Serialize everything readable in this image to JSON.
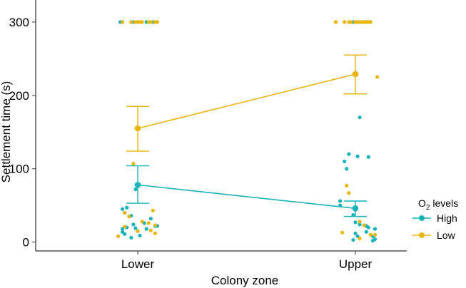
{
  "chart_data": {
    "type": "scatter",
    "title": "",
    "xlabel": "Colony zone",
    "ylabel": "Settlement time (s)",
    "categories": [
      "Lower",
      "Upper"
    ],
    "ylim": [
      -12,
      330
    ],
    "yticks": [
      0,
      100,
      200,
      300
    ],
    "grid": false,
    "legend": {
      "title_main": "O",
      "title_sub": "2",
      "title_rest": " levels",
      "position": "right",
      "entries": [
        {
          "label": "High",
          "color": "#17b3b8"
        },
        {
          "label": "Low",
          "color": "#e8b610"
        }
      ]
    },
    "series": [
      {
        "name": "High",
        "color": "#17b3b8",
        "means": [
          78,
          46
        ],
        "ci_low": [
          53,
          35
        ],
        "ci_high": [
          104,
          56
        ],
        "points": [
          {
            "x": 0,
            "jitter": -0.08,
            "y": 300
          },
          {
            "x": 0,
            "jitter": -0.02,
            "y": 300
          },
          {
            "x": 0,
            "jitter": 0.04,
            "y": 300
          },
          {
            "x": 0,
            "jitter": 0.07,
            "y": 300
          },
          {
            "x": 0,
            "jitter": -0.07,
            "y": 45
          },
          {
            "x": 0,
            "jitter": -0.05,
            "y": 47
          },
          {
            "x": 0,
            "jitter": -0.06,
            "y": 40
          },
          {
            "x": 0,
            "jitter": -0.03,
            "y": 36
          },
          {
            "x": 0,
            "jitter": -0.01,
            "y": 72
          },
          {
            "x": 0,
            "jitter": 0.06,
            "y": 32
          },
          {
            "x": 0,
            "jitter": -0.07,
            "y": 18
          },
          {
            "x": 0,
            "jitter": -0.07,
            "y": 14
          },
          {
            "x": 0,
            "jitter": -0.06,
            "y": 11
          },
          {
            "x": 0,
            "jitter": -0.05,
            "y": 20
          },
          {
            "x": 0,
            "jitter": -0.03,
            "y": 6
          },
          {
            "x": 0,
            "jitter": -0.02,
            "y": 24
          },
          {
            "x": 0,
            "jitter": -0.01,
            "y": 19
          },
          {
            "x": 0,
            "jitter": 0.0,
            "y": 15
          },
          {
            "x": 0,
            "jitter": 0.01,
            "y": 9
          },
          {
            "x": 0,
            "jitter": 0.03,
            "y": 26
          },
          {
            "x": 0,
            "jitter": 0.04,
            "y": 18
          },
          {
            "x": 0,
            "jitter": 0.08,
            "y": 22
          },
          {
            "x": 0,
            "jitter": 0.09,
            "y": 22
          },
          {
            "x": 1,
            "jitter": -0.01,
            "y": 300
          },
          {
            "x": 1,
            "jitter": 0.03,
            "y": 300
          },
          {
            "x": 1,
            "jitter": 0.05,
            "y": 300
          },
          {
            "x": 1,
            "jitter": 0.06,
            "y": 300
          },
          {
            "x": 1,
            "jitter": 0.02,
            "y": 170
          },
          {
            "x": 1,
            "jitter": -0.03,
            "y": 120
          },
          {
            "x": 1,
            "jitter": 0.01,
            "y": 117
          },
          {
            "x": 1,
            "jitter": 0.06,
            "y": 116
          },
          {
            "x": 1,
            "jitter": -0.05,
            "y": 110
          },
          {
            "x": 1,
            "jitter": -0.04,
            "y": 100
          },
          {
            "x": 1,
            "jitter": -0.07,
            "y": 56
          },
          {
            "x": 1,
            "jitter": -0.07,
            "y": 50
          },
          {
            "x": 1,
            "jitter": -0.01,
            "y": 37
          },
          {
            "x": 1,
            "jitter": 0.0,
            "y": 27
          },
          {
            "x": 1,
            "jitter": 0.02,
            "y": 24
          },
          {
            "x": 1,
            "jitter": 0.05,
            "y": 22
          },
          {
            "x": 1,
            "jitter": 0.06,
            "y": 20
          },
          {
            "x": 1,
            "jitter": 0.09,
            "y": 18
          },
          {
            "x": 1,
            "jitter": 0.0,
            "y": 12
          },
          {
            "x": 1,
            "jitter": 0.01,
            "y": 8
          },
          {
            "x": 1,
            "jitter": 0.05,
            "y": 14
          },
          {
            "x": 1,
            "jitter": 0.08,
            "y": 8
          },
          {
            "x": 1,
            "jitter": 0.09,
            "y": 4
          },
          {
            "x": 1,
            "jitter": -0.01,
            "y": 3
          },
          {
            "x": 1,
            "jitter": 0.08,
            "y": 2
          }
        ]
      },
      {
        "name": "Low",
        "color": "#e8b610",
        "means": [
          155,
          229
        ],
        "ci_low": [
          124,
          202
        ],
        "ci_high": [
          185,
          255
        ],
        "points": [
          {
            "x": 0,
            "jitter": -0.07,
            "y": 300
          },
          {
            "x": 0,
            "jitter": -0.03,
            "y": 300
          },
          {
            "x": 0,
            "jitter": -0.01,
            "y": 300
          },
          {
            "x": 0,
            "jitter": 0.0,
            "y": 300
          },
          {
            "x": 0,
            "jitter": 0.01,
            "y": 300
          },
          {
            "x": 0,
            "jitter": 0.02,
            "y": 300
          },
          {
            "x": 0,
            "jitter": 0.05,
            "y": 300
          },
          {
            "x": 0,
            "jitter": 0.06,
            "y": 300
          },
          {
            "x": 0,
            "jitter": 0.08,
            "y": 300
          },
          {
            "x": 0,
            "jitter": 0.09,
            "y": 300
          },
          {
            "x": 0,
            "jitter": -0.02,
            "y": 107
          },
          {
            "x": 0,
            "jitter": 0.07,
            "y": 43
          },
          {
            "x": 0,
            "jitter": -0.06,
            "y": 40
          },
          {
            "x": 0,
            "jitter": -0.04,
            "y": 35
          },
          {
            "x": 0,
            "jitter": 0.02,
            "y": 28
          },
          {
            "x": 0,
            "jitter": 0.05,
            "y": 26
          },
          {
            "x": 0,
            "jitter": 0.08,
            "y": 23
          },
          {
            "x": 0,
            "jitter": -0.06,
            "y": 21
          },
          {
            "x": 0,
            "jitter": 0.0,
            "y": 15
          },
          {
            "x": 0,
            "jitter": 0.06,
            "y": 16
          },
          {
            "x": 0,
            "jitter": 0.08,
            "y": 12
          },
          {
            "x": 0,
            "jitter": -0.09,
            "y": 8
          },
          {
            "x": 1,
            "jitter": -0.09,
            "y": 300
          },
          {
            "x": 1,
            "jitter": -0.05,
            "y": 300
          },
          {
            "x": 1,
            "jitter": -0.03,
            "y": 300
          },
          {
            "x": 1,
            "jitter": -0.02,
            "y": 300
          },
          {
            "x": 1,
            "jitter": 0.0,
            "y": 300
          },
          {
            "x": 1,
            "jitter": 0.01,
            "y": 300
          },
          {
            "x": 1,
            "jitter": 0.02,
            "y": 300
          },
          {
            "x": 1,
            "jitter": 0.03,
            "y": 300
          },
          {
            "x": 1,
            "jitter": 0.04,
            "y": 300
          },
          {
            "x": 1,
            "jitter": 0.05,
            "y": 300
          },
          {
            "x": 1,
            "jitter": 0.06,
            "y": 300
          },
          {
            "x": 1,
            "jitter": 0.07,
            "y": 300
          },
          {
            "x": 1,
            "jitter": 0.1,
            "y": 225
          },
          {
            "x": 1,
            "jitter": -0.04,
            "y": 77
          },
          {
            "x": 1,
            "jitter": -0.03,
            "y": 67
          },
          {
            "x": 1,
            "jitter": 0.02,
            "y": 28
          },
          {
            "x": 1,
            "jitter": 0.04,
            "y": 23
          },
          {
            "x": 1,
            "jitter": -0.06,
            "y": 13
          },
          {
            "x": 1,
            "jitter": 0.07,
            "y": 10
          },
          {
            "x": 1,
            "jitter": 0.09,
            "y": 10
          },
          {
            "x": 1,
            "jitter": 0.02,
            "y": 5
          }
        ]
      }
    ]
  }
}
